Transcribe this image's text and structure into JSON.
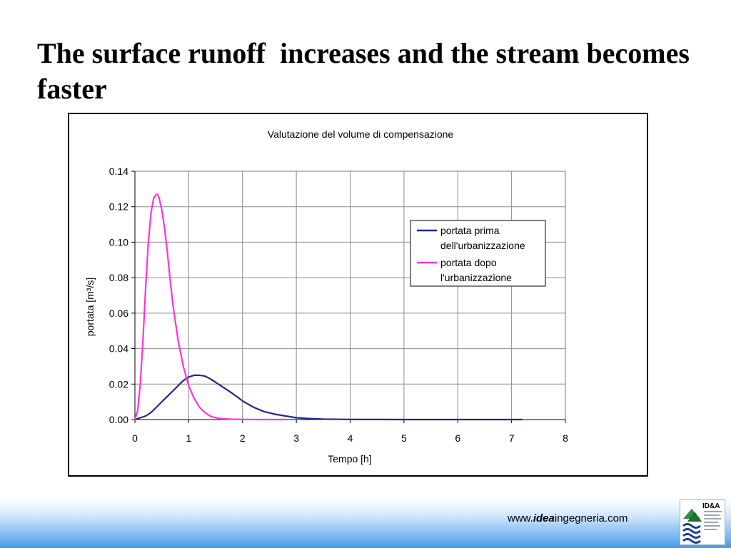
{
  "slide": {
    "title": "The surface runoff  increases and the stream becomes faster"
  },
  "footer": {
    "url_prefix": "www.",
    "url_bold": "idea",
    "url_suffix": "ingegneria.com",
    "logo_text": "ID&A"
  },
  "chart_data": {
    "type": "line",
    "title": "Valutazione del volume di compensazione",
    "xlabel": "Tempo [h]",
    "ylabel": "portata [m³/s]",
    "xlim": [
      0,
      8
    ],
    "ylim": [
      0,
      0.14
    ],
    "x_ticks": [
      0,
      1,
      2,
      3,
      4,
      5,
      6,
      7,
      8
    ],
    "y_ticks": [
      "0.00",
      "0.02",
      "0.04",
      "0.06",
      "0.08",
      "0.10",
      "0.12",
      "0.14"
    ],
    "grid": true,
    "legend_position": "top-right",
    "series": [
      {
        "name": "portata prima dell'urbanizzazione",
        "name_lines": [
          "portata prima",
          "dell'urbanizzazione"
        ],
        "color": "#1f2a8c",
        "x": [
          0,
          0.1,
          0.2,
          0.3,
          0.4,
          0.5,
          0.6,
          0.7,
          0.8,
          0.9,
          1.0,
          1.1,
          1.2,
          1.3,
          1.4,
          1.5,
          1.6,
          1.8,
          2.0,
          2.2,
          2.4,
          2.6,
          2.8,
          3.0,
          3.2,
          3.5,
          4.0,
          4.5,
          5.0,
          6.0,
          7.0,
          7.2
        ],
        "y": [
          0,
          0.001,
          0.002,
          0.004,
          0.007,
          0.01,
          0.013,
          0.016,
          0.019,
          0.022,
          0.024,
          0.025,
          0.025,
          0.0245,
          0.023,
          0.021,
          0.019,
          0.015,
          0.0105,
          0.007,
          0.0045,
          0.003,
          0.002,
          0.001,
          0.0006,
          0.0003,
          0.0001,
          5e-05,
          0,
          0,
          0,
          0
        ]
      },
      {
        "name": "portata dopo l'urbanizzazione",
        "name_lines": [
          "portata dopo",
          "l'urbanizzazione"
        ],
        "color": "#ff33dd",
        "x": [
          0,
          0.05,
          0.1,
          0.15,
          0.2,
          0.25,
          0.3,
          0.35,
          0.4,
          0.42,
          0.45,
          0.5,
          0.55,
          0.6,
          0.65,
          0.7,
          0.8,
          0.9,
          1.0,
          1.1,
          1.2,
          1.3,
          1.4,
          1.5,
          1.6,
          1.8,
          2.0,
          2.4,
          2.8
        ],
        "y": [
          0,
          0.005,
          0.02,
          0.045,
          0.075,
          0.1,
          0.117,
          0.125,
          0.127,
          0.127,
          0.125,
          0.118,
          0.108,
          0.095,
          0.08,
          0.066,
          0.045,
          0.03,
          0.019,
          0.012,
          0.007,
          0.004,
          0.002,
          0.001,
          0.0005,
          0.0002,
          0.0001,
          0,
          0
        ]
      }
    ]
  }
}
